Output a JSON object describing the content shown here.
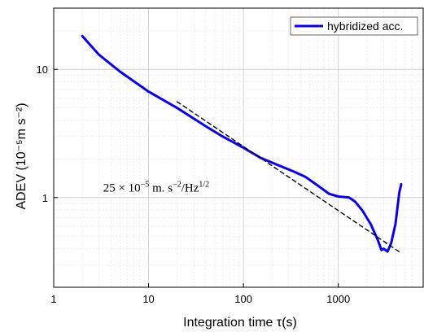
{
  "chart_data": {
    "type": "line",
    "xscale": "log",
    "yscale": "log",
    "xlim": [
      1,
      8000
    ],
    "ylim": [
      0.2,
      30
    ],
    "grid": true,
    "xlabel": "Integration time τ(s)",
    "ylabel": "ADEV  (10⁻⁵m s⁻²)",
    "xticks": [
      {
        "value": 1,
        "label": "1"
      },
      {
        "value": 10,
        "label": "10"
      },
      {
        "value": 100,
        "label": "100"
      },
      {
        "value": 1000,
        "label": "1000"
      }
    ],
    "yticks": [
      {
        "value": 1,
        "label": "1"
      },
      {
        "value": 10,
        "label": "10"
      }
    ],
    "legend": {
      "position": "top-right"
    },
    "series": [
      {
        "name": "hybridized acc.",
        "color": "#0a00e6",
        "style": "solid",
        "points": [
          [
            2,
            18.2
          ],
          [
            3,
            13.0
          ],
          [
            5,
            9.6
          ],
          [
            10,
            6.7
          ],
          [
            20,
            5.0
          ],
          [
            40,
            3.6
          ],
          [
            60,
            3.0
          ],
          [
            100,
            2.45
          ],
          [
            150,
            2.05
          ],
          [
            250,
            1.75
          ],
          [
            350,
            1.58
          ],
          [
            450,
            1.45
          ],
          [
            600,
            1.25
          ],
          [
            800,
            1.07
          ],
          [
            1000,
            1.02
          ],
          [
            1300,
            1.0
          ],
          [
            1500,
            0.93
          ],
          [
            1800,
            0.79
          ],
          [
            2200,
            0.62
          ],
          [
            2600,
            0.47
          ],
          [
            2850,
            0.39
          ],
          [
            3000,
            0.4
          ],
          [
            3300,
            0.38
          ],
          [
            3600,
            0.44
          ],
          [
            4000,
            0.62
          ],
          [
            4400,
            1.1
          ],
          [
            4600,
            1.27
          ]
        ]
      },
      {
        "name": "",
        "color": "#000000",
        "style": "dashed",
        "points": [
          [
            20,
            5.59
          ],
          [
            4500,
            0.373
          ]
        ]
      }
    ],
    "annotations": [
      {
        "text_main": "25 × 10",
        "sup1": "−5",
        "text_mid": " m. s",
        "sup2": "−2",
        "text_end": "/Hz",
        "sup3": "1/2",
        "x": 6,
        "y": 1.2
      }
    ]
  }
}
